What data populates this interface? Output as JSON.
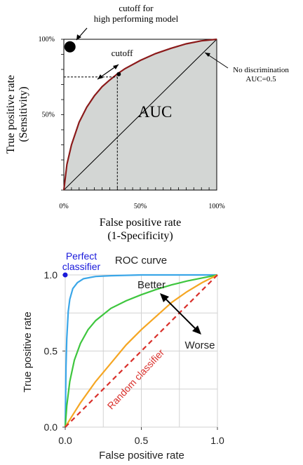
{
  "chart_data": [
    {
      "type": "area",
      "title": "",
      "xlabel": [
        "False  positive  rate",
        "(1-Specificity)"
      ],
      "ylabel": [
        "True  positive  rate",
        "(Sensitivity)"
      ],
      "xlim": [
        0,
        100
      ],
      "ylim": [
        0,
        100
      ],
      "x_ticks": [
        "0%",
        "50%",
        "100%"
      ],
      "y_ticks": [
        "50%",
        "100%"
      ],
      "series": [
        {
          "x": [
            0,
            2,
            5,
            10,
            15,
            20,
            25,
            30,
            35,
            40,
            50,
            60,
            70,
            80,
            90,
            100
          ],
          "y": [
            0,
            17,
            30,
            45,
            55,
            62.5,
            68.5,
            73,
            77,
            80.5,
            86,
            90.5,
            94,
            97,
            99,
            100
          ]
        },
        {
          "x": [
            0,
            100
          ],
          "y": [
            0,
            100
          ]
        }
      ],
      "marked_point": {
        "x": 35,
        "y": 75
      },
      "perfect_point": {
        "x": 4,
        "y": 95
      },
      "annotations": {
        "auc": "AUC",
        "cutoff": "cutoff",
        "cutoff_high": [
          "cutoff  for",
          "high  performing  model"
        ],
        "no_discrimination": [
          "No  discrimination",
          "AUC=0.5"
        ]
      }
    },
    {
      "type": "line",
      "title": "ROC curve",
      "xlabel": "False positive rate",
      "ylabel": "True positive rate",
      "xlim": [
        0,
        1
      ],
      "ylim": [
        0,
        1
      ],
      "x_ticks": [
        "0.0",
        "0.5",
        "1.0"
      ],
      "y_ticks": [
        "0.0",
        "0.5",
        "1.0"
      ],
      "series": [
        {
          "color": "#3aa6e8",
          "x": [
            0,
            0.005,
            0.01,
            0.02,
            0.03,
            0.05,
            0.08,
            0.12,
            0.2,
            0.3,
            0.5,
            0.7,
            1.0
          ],
          "y": [
            0,
            0.4,
            0.58,
            0.76,
            0.84,
            0.91,
            0.95,
            0.975,
            0.99,
            0.995,
            1.0,
            1.0,
            1.0
          ]
        },
        {
          "color": "#3ec63e",
          "x": [
            0,
            0.01,
            0.03,
            0.06,
            0.1,
            0.15,
            0.2,
            0.3,
            0.4,
            0.5,
            0.6,
            0.7,
            0.8,
            0.9,
            1.0
          ],
          "y": [
            0,
            0.14,
            0.3,
            0.44,
            0.55,
            0.64,
            0.7,
            0.78,
            0.83,
            0.87,
            0.905,
            0.935,
            0.96,
            0.98,
            1.0
          ]
        },
        {
          "color": "#f5a623",
          "x": [
            0,
            0.05,
            0.1,
            0.2,
            0.3,
            0.4,
            0.5,
            0.6,
            0.7,
            0.8,
            0.9,
            1.0
          ],
          "y": [
            0,
            0.08,
            0.16,
            0.3,
            0.42,
            0.54,
            0.64,
            0.73,
            0.82,
            0.89,
            0.95,
            1.0
          ]
        },
        {
          "color": "#d9302b",
          "dashed": true,
          "x": [
            0,
            1
          ],
          "y": [
            0,
            1
          ]
        }
      ],
      "perfect_point": {
        "x": 0,
        "y": 1,
        "color": "#1a1adb"
      },
      "annotations": {
        "perfect": [
          "Perfect",
          "classifier"
        ],
        "better": "Better",
        "worse": "Worse",
        "random": "Random classifier"
      }
    }
  ]
}
